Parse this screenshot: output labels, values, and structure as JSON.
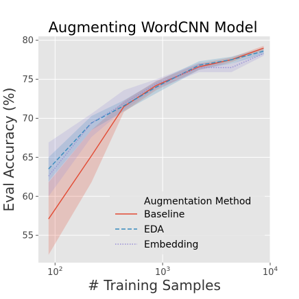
{
  "chart_data": {
    "type": "line",
    "title": "Augmenting WordCNN Model",
    "xlabel": "# Training Samples",
    "ylabel": "Eval Accuracy (%)",
    "xscale": "log",
    "xlim": [
      70,
      10000
    ],
    "ylim": [
      51.5,
      80.5
    ],
    "yticks": [
      55,
      60,
      65,
      70,
      75,
      80
    ],
    "xticks": [
      {
        "value": 100,
        "base": "10",
        "exp": "2"
      },
      {
        "value": 1000,
        "base": "10",
        "exp": "3"
      },
      {
        "value": 10000,
        "base": "10",
        "exp": "4"
      }
    ],
    "grid": true,
    "legend": {
      "title": "Augmentation Method",
      "placement": "lower-right"
    },
    "series": [
      {
        "name": "Baseline",
        "color": "#e24a33",
        "dash": "solid",
        "x": [
          87,
          218,
          436,
          870,
          2180,
          4360,
          8700
        ],
        "y": [
          57.1,
          65.2,
          71.5,
          74.2,
          76.6,
          77.5,
          79.0
        ],
        "lower": [
          52.5,
          61.8,
          70.8,
          73.6,
          76.2,
          77.2,
          78.7
        ],
        "upper": [
          61.8,
          68.5,
          72.2,
          74.8,
          77.0,
          77.8,
          79.3
        ]
      },
      {
        "name": "EDA",
        "color": "#348abd",
        "dash": "dashed",
        "x": [
          87,
          218,
          436,
          870,
          2180,
          4360,
          8700
        ],
        "y": [
          63.5,
          69.4,
          71.6,
          74.0,
          76.8,
          77.5,
          78.6
        ],
        "lower": [
          61.9,
          68.5,
          70.9,
          73.2,
          76.2,
          77.0,
          78.2
        ],
        "upper": [
          65.0,
          70.3,
          72.3,
          74.7,
          77.3,
          77.9,
          79.0
        ]
      },
      {
        "name": "Embedding",
        "color": "#988ed5",
        "dash": "dotted",
        "x": [
          87,
          218,
          436,
          870,
          2180,
          4360,
          8700
        ],
        "y": [
          62.6,
          69.4,
          71.9,
          74.4,
          76.5,
          76.5,
          78.3
        ],
        "lower": [
          60.0,
          67.6,
          71.1,
          73.8,
          75.9,
          75.9,
          78.0
        ],
        "upper": [
          66.9,
          70.6,
          73.6,
          75.0,
          77.1,
          77.0,
          78.7
        ]
      }
    ]
  }
}
